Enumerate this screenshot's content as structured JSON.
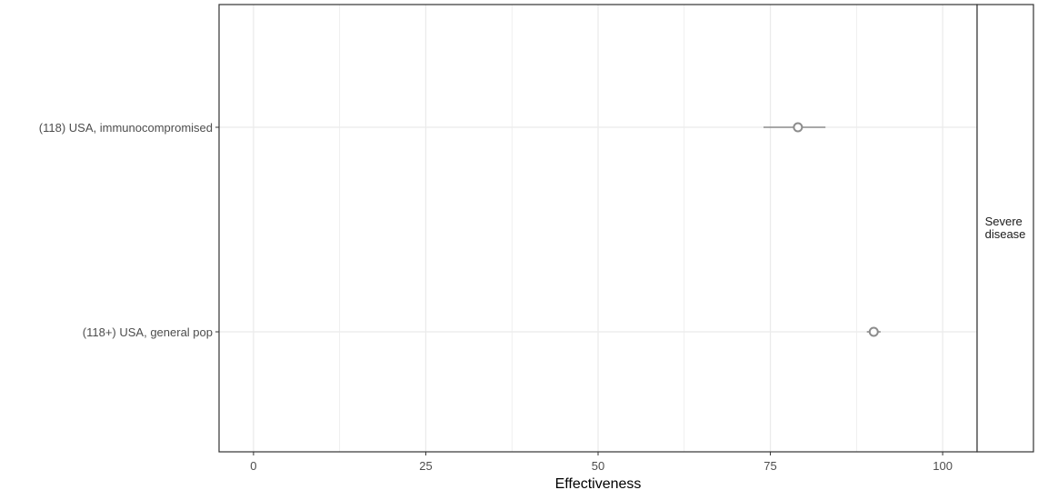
{
  "chart_data": {
    "type": "scatter",
    "subtype": "forest-plot",
    "xlabel": "Effectiveness",
    "ylabel": "",
    "xlim": [
      -5,
      105
    ],
    "x_ticks": [
      0,
      25,
      50,
      75,
      100
    ],
    "grid": true,
    "facet_label_lines": [
      "Severe",
      "disease"
    ],
    "categories": [
      "(118) USA, immunocompromised",
      "(118+) USA, general pop"
    ],
    "points": [
      {
        "label": "(118) USA, immunocompromised",
        "estimate": 79,
        "lower": 74,
        "upper": 83
      },
      {
        "label": "(118+) USA, general pop",
        "estimate": 90,
        "lower": 89,
        "upper": 91
      }
    ],
    "colors": {
      "point": "#8c8c8c",
      "errorbar": "#8c8c8c",
      "grid": "#ebebeb",
      "panel_border": "#333333",
      "text": "#4d4d4d",
      "title_text": "#000000"
    }
  }
}
